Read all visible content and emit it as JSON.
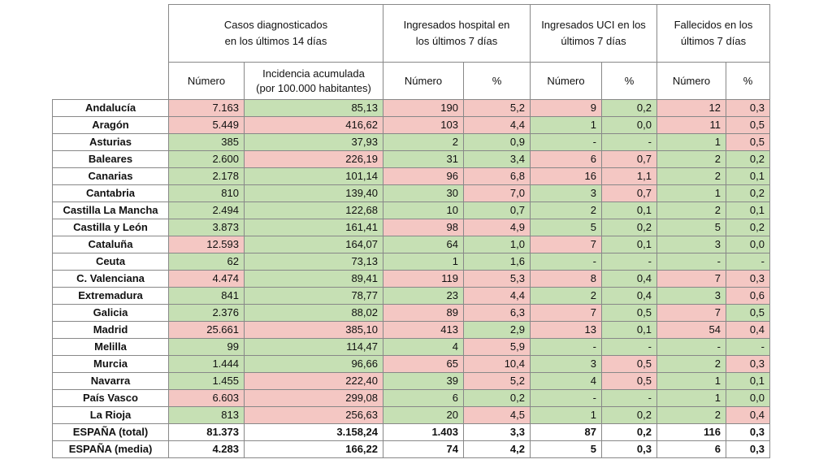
{
  "header": {
    "groups": [
      "Casos diagnosticados\nen los últimos 14 días",
      "Ingresados hospital en\nlos últimos 7 días",
      "Ingresados UCI en los\núltimos 7 días",
      "Fallecidos en los\núltimos 7 días"
    ],
    "columns": [
      "Número",
      "Incidencia acumulada\n(por 100.000 habitantes)",
      "Número",
      "%",
      "Número",
      "%",
      "Número",
      "%"
    ]
  },
  "palette": {
    "high": "#f4c7c3",
    "low": "#c6e0b4"
  },
  "table": {
    "rows": [
      {
        "region": "Andalucía",
        "cells": [
          "7.163",
          "85,13",
          "190",
          "5,2",
          "9",
          "0,2",
          "12",
          "0,3"
        ],
        "colors": [
          "#f4c7c3",
          "#c6e0b4",
          "#f4c7c3",
          "#f4c7c3",
          "#f4c7c3",
          "#c6e0b4",
          "#f4c7c3",
          "#f4c7c3"
        ]
      },
      {
        "region": "Aragón",
        "cells": [
          "5.449",
          "416,62",
          "103",
          "4,4",
          "1",
          "0,0",
          "11",
          "0,5"
        ],
        "colors": [
          "#f4c7c3",
          "#f4c7c3",
          "#f4c7c3",
          "#f4c7c3",
          "#c6e0b4",
          "#c6e0b4",
          "#f4c7c3",
          "#f4c7c3"
        ]
      },
      {
        "region": "Asturias",
        "cells": [
          "385",
          "37,93",
          "2",
          "0,9",
          "-",
          "-",
          "1",
          "0,5"
        ],
        "colors": [
          "#c6e0b4",
          "#c6e0b4",
          "#c6e0b4",
          "#c6e0b4",
          "#c6e0b4",
          "#c6e0b4",
          "#c6e0b4",
          "#f4c7c3"
        ]
      },
      {
        "region": "Baleares",
        "cells": [
          "2.600",
          "226,19",
          "31",
          "3,4",
          "6",
          "0,7",
          "2",
          "0,2"
        ],
        "colors": [
          "#c6e0b4",
          "#f4c7c3",
          "#c6e0b4",
          "#c6e0b4",
          "#f4c7c3",
          "#f4c7c3",
          "#c6e0b4",
          "#c6e0b4"
        ]
      },
      {
        "region": "Canarias",
        "cells": [
          "2.178",
          "101,14",
          "96",
          "6,8",
          "16",
          "1,1",
          "2",
          "0,1"
        ],
        "colors": [
          "#c6e0b4",
          "#c6e0b4",
          "#f4c7c3",
          "#f4c7c3",
          "#f4c7c3",
          "#f4c7c3",
          "#c6e0b4",
          "#c6e0b4"
        ]
      },
      {
        "region": "Cantabria",
        "cells": [
          "810",
          "139,40",
          "30",
          "7,0",
          "3",
          "0,7",
          "1",
          "0,2"
        ],
        "colors": [
          "#c6e0b4",
          "#c6e0b4",
          "#c6e0b4",
          "#f4c7c3",
          "#c6e0b4",
          "#f4c7c3",
          "#c6e0b4",
          "#c6e0b4"
        ]
      },
      {
        "region": "Castilla La Mancha",
        "cells": [
          "2.494",
          "122,68",
          "10",
          "0,7",
          "2",
          "0,1",
          "2",
          "0,1"
        ],
        "colors": [
          "#c6e0b4",
          "#c6e0b4",
          "#c6e0b4",
          "#c6e0b4",
          "#c6e0b4",
          "#c6e0b4",
          "#c6e0b4",
          "#c6e0b4"
        ]
      },
      {
        "region": "Castilla y León",
        "cells": [
          "3.873",
          "161,41",
          "98",
          "4,9",
          "5",
          "0,2",
          "5",
          "0,2"
        ],
        "colors": [
          "#c6e0b4",
          "#c6e0b4",
          "#f4c7c3",
          "#f4c7c3",
          "#c6e0b4",
          "#c6e0b4",
          "#c6e0b4",
          "#c6e0b4"
        ]
      },
      {
        "region": "Cataluña",
        "cells": [
          "12.593",
          "164,07",
          "64",
          "1,0",
          "7",
          "0,1",
          "3",
          "0,0"
        ],
        "colors": [
          "#f4c7c3",
          "#c6e0b4",
          "#c6e0b4",
          "#c6e0b4",
          "#f4c7c3",
          "#c6e0b4",
          "#c6e0b4",
          "#c6e0b4"
        ]
      },
      {
        "region": "Ceuta",
        "cells": [
          "62",
          "73,13",
          "1",
          "1,6",
          "-",
          "-",
          "-",
          "-"
        ],
        "colors": [
          "#c6e0b4",
          "#c6e0b4",
          "#c6e0b4",
          "#c6e0b4",
          "#c6e0b4",
          "#c6e0b4",
          "#c6e0b4",
          "#c6e0b4"
        ]
      },
      {
        "region": "C. Valenciana",
        "cells": [
          "4.474",
          "89,41",
          "119",
          "5,3",
          "8",
          "0,4",
          "7",
          "0,3"
        ],
        "colors": [
          "#f4c7c3",
          "#c6e0b4",
          "#f4c7c3",
          "#f4c7c3",
          "#f4c7c3",
          "#c6e0b4",
          "#f4c7c3",
          "#f4c7c3"
        ]
      },
      {
        "region": "Extremadura",
        "cells": [
          "841",
          "78,77",
          "23",
          "4,4",
          "2",
          "0,4",
          "3",
          "0,6"
        ],
        "colors": [
          "#c6e0b4",
          "#c6e0b4",
          "#c6e0b4",
          "#f4c7c3",
          "#c6e0b4",
          "#c6e0b4",
          "#c6e0b4",
          "#f4c7c3"
        ]
      },
      {
        "region": "Galicia",
        "cells": [
          "2.376",
          "88,02",
          "89",
          "6,3",
          "7",
          "0,5",
          "7",
          "0,5"
        ],
        "colors": [
          "#c6e0b4",
          "#c6e0b4",
          "#f4c7c3",
          "#f4c7c3",
          "#f4c7c3",
          "#c6e0b4",
          "#f4c7c3",
          "#c6e0b4"
        ]
      },
      {
        "region": "Madrid",
        "cells": [
          "25.661",
          "385,10",
          "413",
          "2,9",
          "13",
          "0,1",
          "54",
          "0,4"
        ],
        "colors": [
          "#f4c7c3",
          "#f4c7c3",
          "#f4c7c3",
          "#c6e0b4",
          "#f4c7c3",
          "#c6e0b4",
          "#f4c7c3",
          "#f4c7c3"
        ]
      },
      {
        "region": "Melilla",
        "cells": [
          "99",
          "114,47",
          "4",
          "5,9",
          "-",
          "-",
          "-",
          "-"
        ],
        "colors": [
          "#c6e0b4",
          "#c6e0b4",
          "#c6e0b4",
          "#f4c7c3",
          "#c6e0b4",
          "#c6e0b4",
          "#c6e0b4",
          "#c6e0b4"
        ]
      },
      {
        "region": "Murcia",
        "cells": [
          "1.444",
          "96,66",
          "65",
          "10,4",
          "3",
          "0,5",
          "2",
          "0,3"
        ],
        "colors": [
          "#c6e0b4",
          "#c6e0b4",
          "#f4c7c3",
          "#f4c7c3",
          "#c6e0b4",
          "#f4c7c3",
          "#c6e0b4",
          "#f4c7c3"
        ]
      },
      {
        "region": "Navarra",
        "cells": [
          "1.455",
          "222,40",
          "39",
          "5,2",
          "4",
          "0,5",
          "1",
          "0,1"
        ],
        "colors": [
          "#c6e0b4",
          "#f4c7c3",
          "#c6e0b4",
          "#f4c7c3",
          "#c6e0b4",
          "#f4c7c3",
          "#c6e0b4",
          "#c6e0b4"
        ]
      },
      {
        "region": "País Vasco",
        "cells": [
          "6.603",
          "299,08",
          "6",
          "0,2",
          "-",
          "-",
          "1",
          "0,0"
        ],
        "colors": [
          "#f4c7c3",
          "#f4c7c3",
          "#c6e0b4",
          "#c6e0b4",
          "#c6e0b4",
          "#c6e0b4",
          "#c6e0b4",
          "#c6e0b4"
        ]
      },
      {
        "region": "La Rioja",
        "cells": [
          "813",
          "256,63",
          "20",
          "4,5",
          "1",
          "0,2",
          "2",
          "0,4"
        ],
        "colors": [
          "#c6e0b4",
          "#f4c7c3",
          "#c6e0b4",
          "#f4c7c3",
          "#c6e0b4",
          "#c6e0b4",
          "#c6e0b4",
          "#f4c7c3"
        ]
      }
    ],
    "totals": [
      {
        "region": "ESPAÑA (total)",
        "cells": [
          "81.373",
          "3.158,24",
          "1.403",
          "3,3",
          "87",
          "0,2",
          "116",
          "0,3"
        ]
      },
      {
        "region": "ESPAÑA (media)",
        "cells": [
          "4.283",
          "166,22",
          "74",
          "4,2",
          "5",
          "0,3",
          "6",
          "0,3"
        ]
      }
    ]
  }
}
